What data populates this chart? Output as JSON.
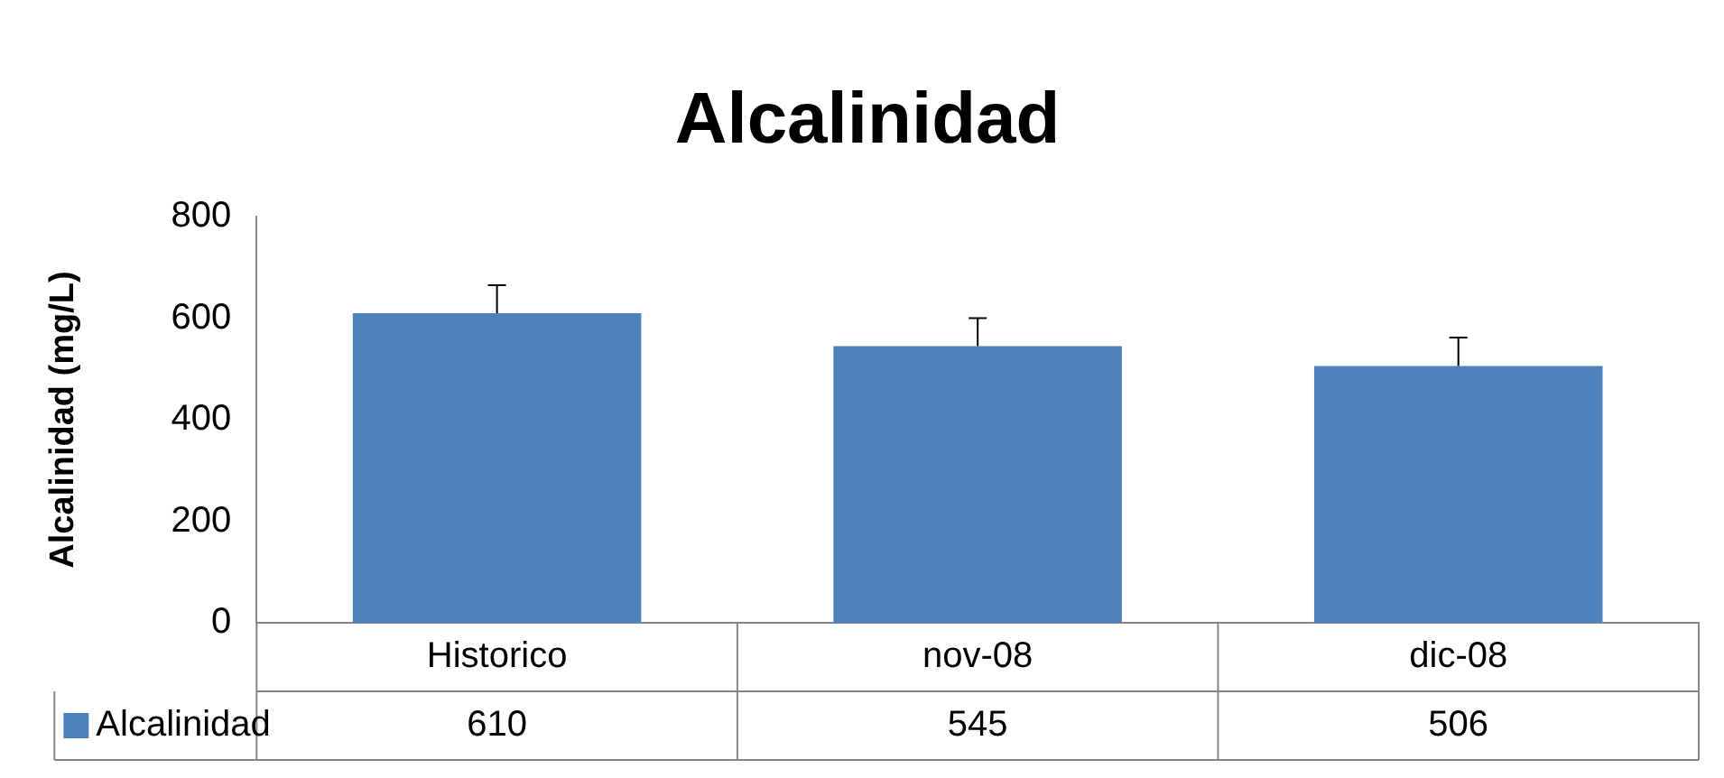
{
  "chart_data": {
    "type": "bar",
    "title": "Alcalinidad",
    "ylabel": "Alcalinidad (mg/L)",
    "categories": [
      "Historico",
      "nov-08",
      "dic-08"
    ],
    "series": [
      {
        "name": "Alcalinidad",
        "color": "#4f81bd",
        "values": [
          610,
          545,
          506
        ],
        "errors": [
          [
            610,
            665
          ],
          [
            545,
            600
          ],
          [
            506,
            562
          ]
        ]
      }
    ],
    "ylim": [
      0,
      800
    ],
    "yticks": [
      0,
      200,
      400,
      600,
      800
    ],
    "grid": false,
    "legend": "bottom",
    "data_labels": true
  }
}
